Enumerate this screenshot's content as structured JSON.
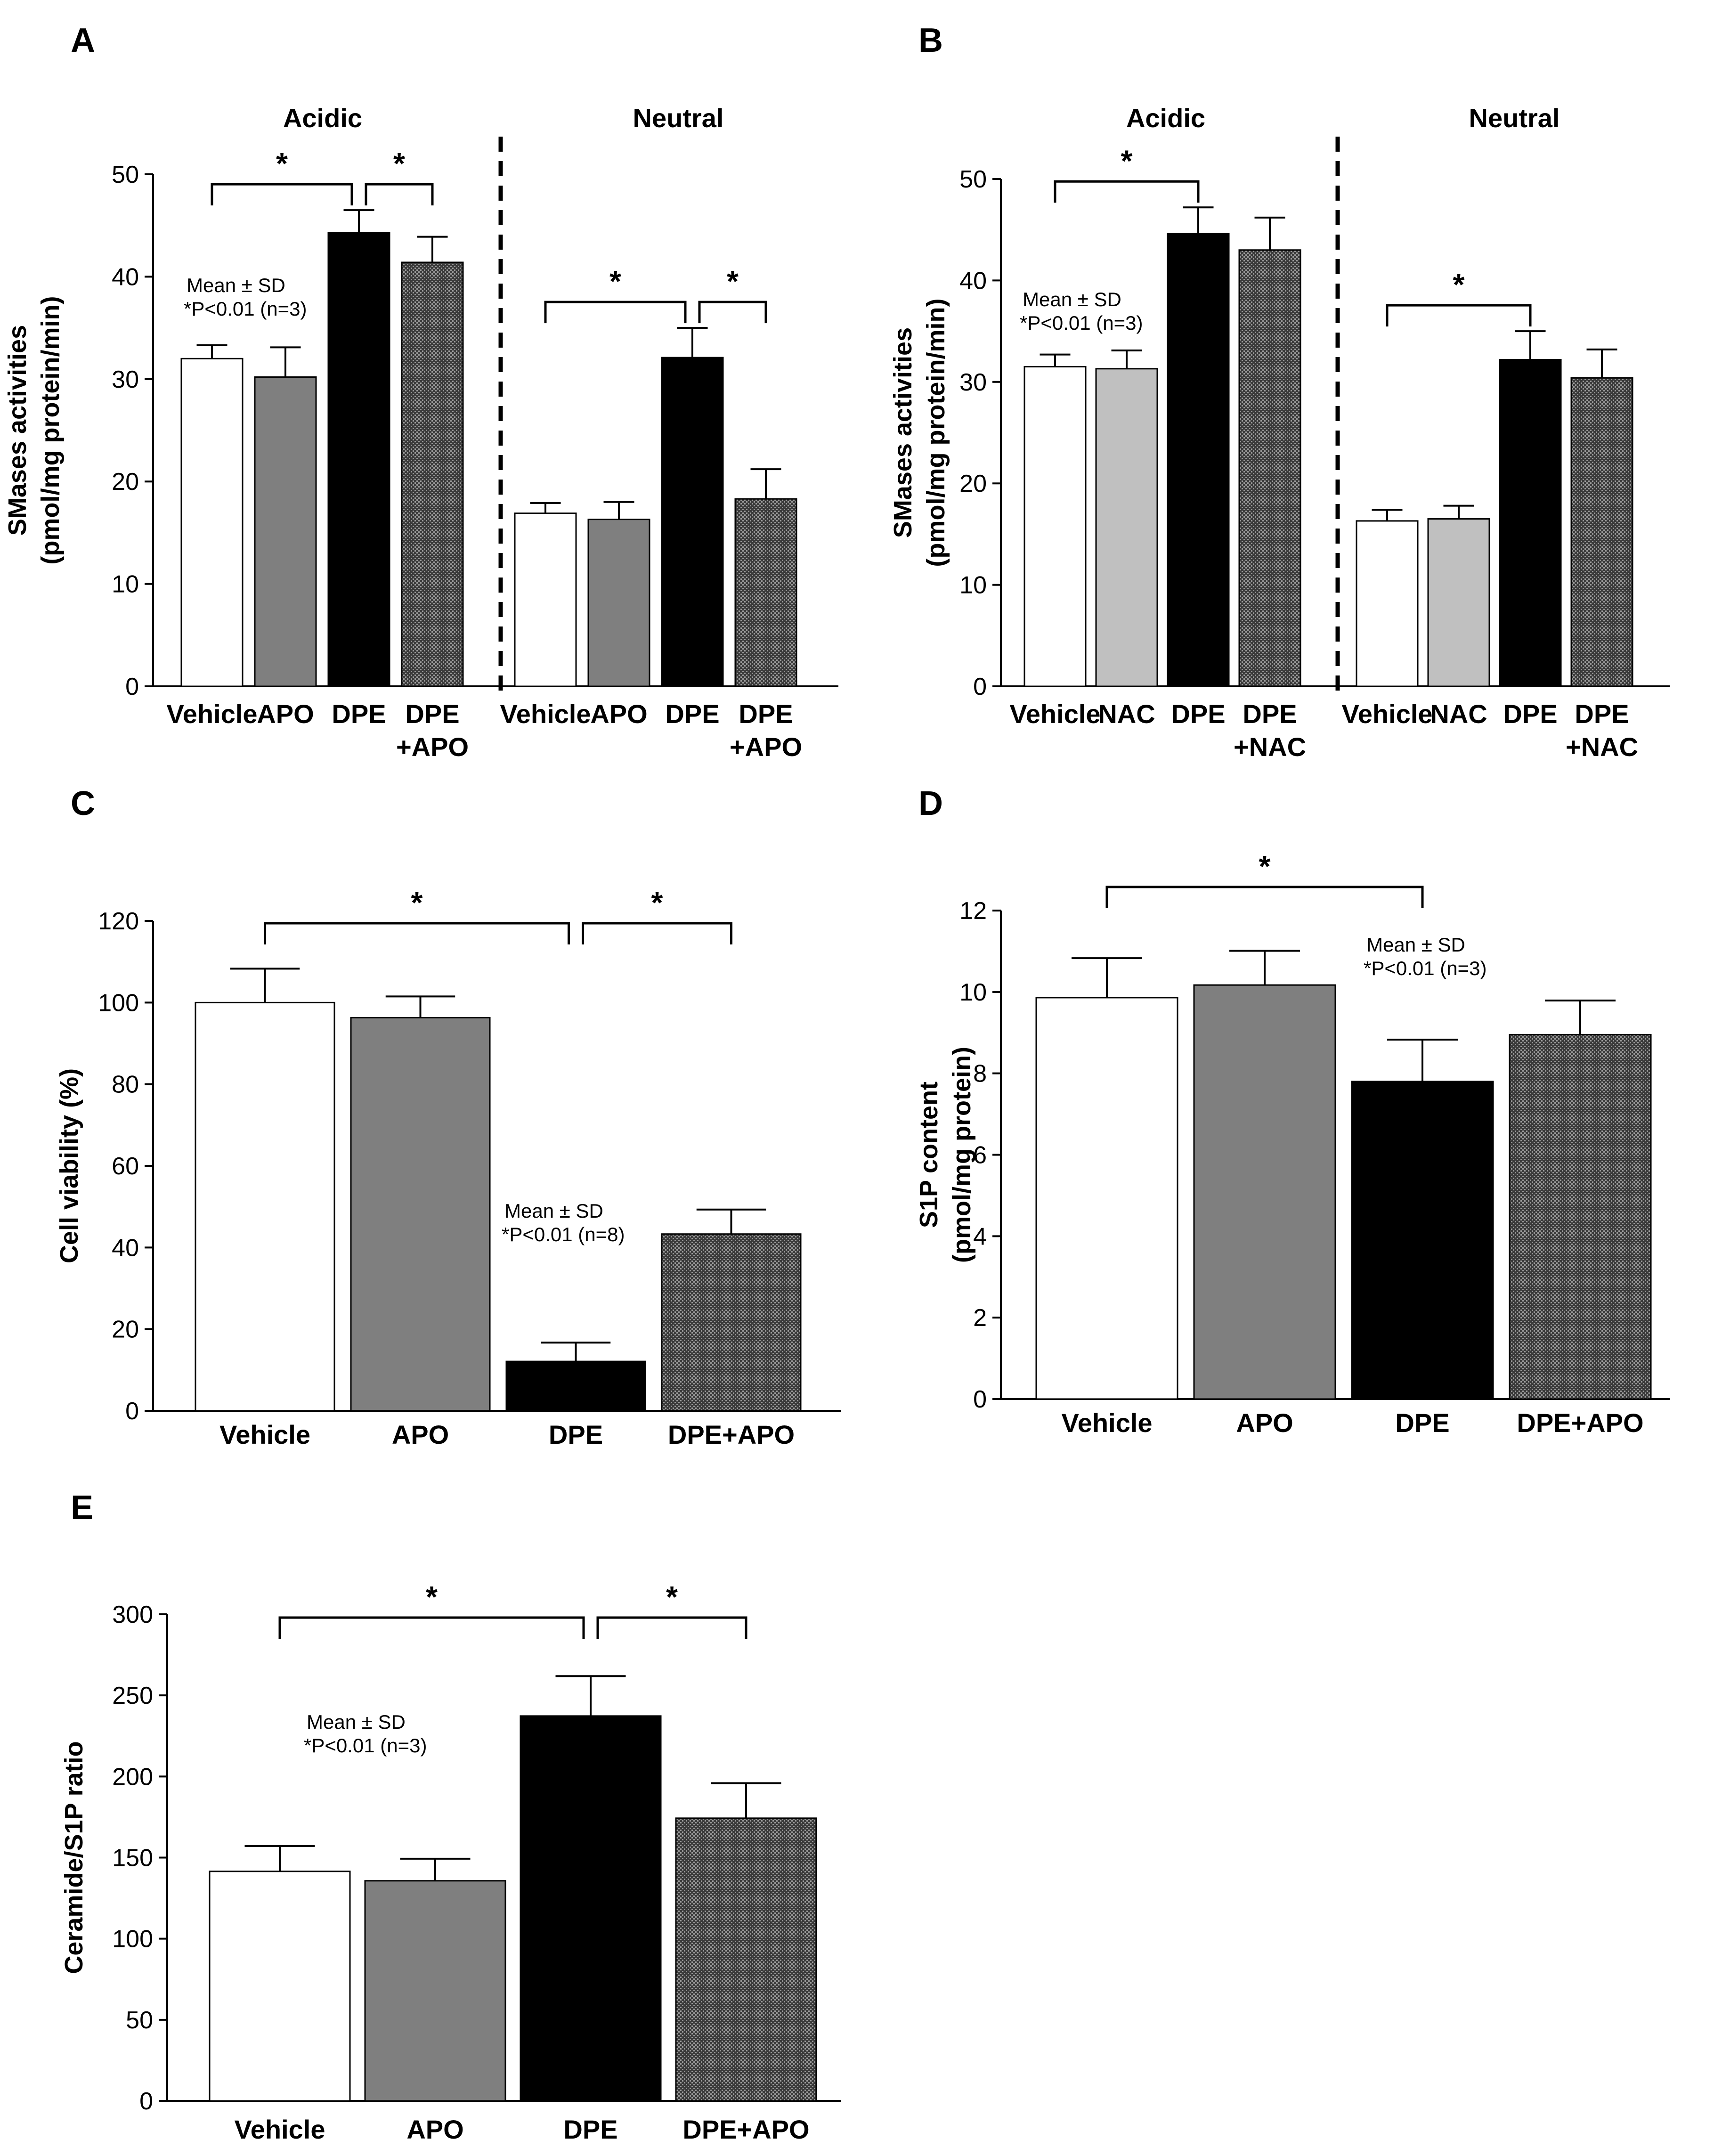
{
  "colors": {
    "Vehicle": "#ffffff",
    "APO": "#7f7f7f",
    "NAC": "#c0c0c0",
    "DPE": "#000000",
    "DPE+APO": "pattern-dark",
    "DPE+NAC": "pattern-dark"
  },
  "chart_data": [
    {
      "id": "A",
      "type": "bar",
      "panel_label": "A",
      "ylabel": "SMases activities (pmol/mg protein/min)",
      "ylim": [
        0,
        50
      ],
      "yticks": [
        0,
        10,
        20,
        30,
        40,
        50
      ],
      "annotation": [
        "Mean ± SD",
        "*P<0.01 (n=3)"
      ],
      "groups": [
        {
          "title": "Acidic",
          "categories": [
            "Vehicle",
            "APO",
            "DPE",
            "DPE +APO"
          ],
          "values": [
            32,
            30.2,
            44.3,
            41.4
          ],
          "errors": [
            1.3,
            2.9,
            2.2,
            2.5
          ],
          "colors": [
            "Vehicle",
            "APO",
            "DPE",
            "DPE+APO"
          ],
          "significance": [
            [
              0,
              2
            ],
            [
              2,
              3
            ]
          ]
        },
        {
          "title": "Neutral",
          "categories": [
            "Vehicle",
            "APO",
            "DPE",
            "DPE +APO"
          ],
          "values": [
            16.9,
            16.3,
            32.1,
            18.3
          ],
          "errors": [
            1.0,
            1.7,
            2.9,
            2.9
          ],
          "colors": [
            "Vehicle",
            "APO",
            "DPE",
            "DPE+APO"
          ],
          "significance": [
            [
              0,
              2
            ],
            [
              2,
              3
            ]
          ]
        }
      ],
      "significance_marker": "*"
    },
    {
      "id": "B",
      "type": "bar",
      "panel_label": "B",
      "ylabel": "SMases activities (pmol/mg protein/min)",
      "ylim": [
        0,
        50
      ],
      "yticks": [
        0,
        10,
        20,
        30,
        40,
        50
      ],
      "annotation": [
        "Mean ± SD",
        "*P<0.01 (n=3)"
      ],
      "groups": [
        {
          "title": "Acidic",
          "categories": [
            "Vehicle",
            "NAC",
            "DPE",
            "DPE +NAC"
          ],
          "values": [
            31.5,
            31.3,
            44.6,
            43
          ],
          "errors": [
            1.2,
            1.8,
            2.6,
            3.2
          ],
          "colors": [
            "Vehicle",
            "NAC",
            "DPE",
            "DPE+NAC"
          ],
          "significance": [
            [
              0,
              2
            ]
          ]
        },
        {
          "title": "Neutral",
          "categories": [
            "Vehicle",
            "NAC",
            "DPE",
            "DPE +NAC"
          ],
          "values": [
            16.3,
            16.5,
            32.2,
            30.4
          ],
          "errors": [
            1.1,
            1.3,
            2.8,
            2.8
          ],
          "colors": [
            "Vehicle",
            "NAC",
            "DPE",
            "DPE+NAC"
          ],
          "significance": [
            [
              0,
              2
            ]
          ]
        }
      ],
      "significance_marker": "*"
    },
    {
      "id": "C",
      "type": "bar",
      "panel_label": "C",
      "ylabel": "Cell viability (%)",
      "ylim": [
        0,
        120
      ],
      "yticks": [
        0,
        20,
        40,
        60,
        80,
        100,
        120
      ],
      "annotation": [
        "Mean ± SD",
        "*P<0.01 (n=8)"
      ],
      "groups": [
        {
          "title": "",
          "categories": [
            "Vehicle",
            "APO",
            "DPE",
            "DPE+APO"
          ],
          "values": [
            100,
            96.3,
            12.1,
            43.3
          ],
          "errors": [
            8.3,
            5.2,
            4.6,
            6.0
          ],
          "colors": [
            "Vehicle",
            "APO",
            "DPE",
            "DPE+APO"
          ],
          "significance": [
            [
              0,
              2
            ],
            [
              2,
              3
            ]
          ]
        }
      ],
      "significance_marker": "*"
    },
    {
      "id": "D",
      "type": "bar",
      "panel_label": "D",
      "ylabel": "S1P content (pmol/mg protein)",
      "ylim": [
        0,
        12
      ],
      "yticks": [
        0,
        2,
        4,
        6,
        8,
        10,
        12
      ],
      "annotation": [
        "Mean ± SD",
        "*P<0.01 (n=3)"
      ],
      "groups": [
        {
          "title": "",
          "categories": [
            "Vehicle",
            "APO",
            "DPE",
            "DPE+APO"
          ],
          "values": [
            9.86,
            10.17,
            7.8,
            8.95
          ],
          "errors": [
            0.97,
            0.84,
            1.03,
            0.84
          ],
          "colors": [
            "Vehicle",
            "APO",
            "DPE",
            "DPE+APO"
          ],
          "significance": [
            [
              0,
              2
            ]
          ]
        }
      ],
      "significance_marker": "*"
    },
    {
      "id": "E",
      "type": "bar",
      "panel_label": "E",
      "ylabel": "Ceramide/S1P ratio",
      "ylim": [
        0,
        300
      ],
      "yticks": [
        0,
        50,
        100,
        150,
        200,
        250,
        300
      ],
      "annotation": [
        "Mean ± SD",
        "*P<0.01 (n=3)"
      ],
      "groups": [
        {
          "title": "",
          "categories": [
            "Vehicle",
            "APO",
            "DPE",
            "DPE+APO"
          ],
          "values": [
            141.5,
            135.7,
            237.3,
            174.3
          ],
          "errors": [
            15.6,
            13.6,
            24.6,
            21.6
          ],
          "colors": [
            "Vehicle",
            "APO",
            "DPE",
            "DPE+APO"
          ],
          "significance": [
            [
              0,
              2
            ],
            [
              2,
              3
            ]
          ]
        }
      ],
      "significance_marker": "*"
    }
  ]
}
